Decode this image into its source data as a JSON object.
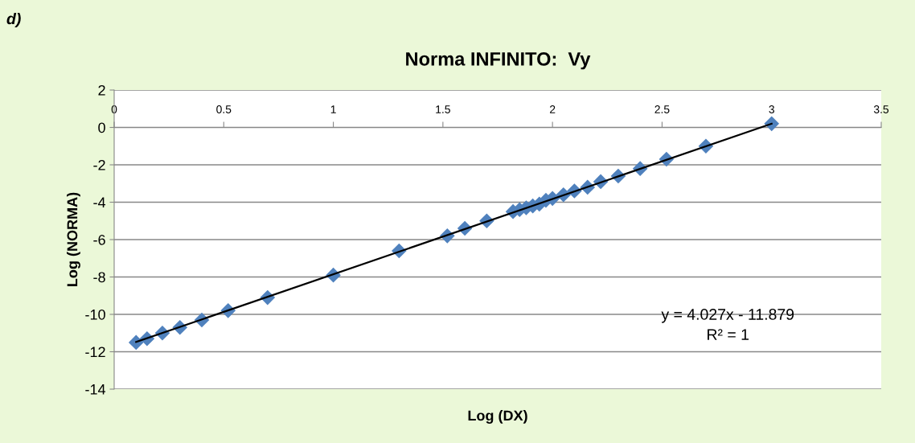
{
  "chart_data": {
    "type": "scatter",
    "title": "Norma INFINITO:  Vy",
    "xlabel": "Log (DX)",
    "ylabel": "Log (NORMA)",
    "annotations": [
      "d)",
      "y = 4.027x - 11.879\nR² = 1"
    ],
    "series": [
      {
        "color": "#4f81bd",
        "marker": "diamond",
        "x": [
          0.1,
          0.15,
          0.22,
          0.3,
          0.4,
          0.52,
          0.7,
          1.0,
          1.3,
          1.52,
          1.6,
          1.7,
          1.82,
          1.85,
          1.88,
          1.91,
          1.94,
          1.97,
          2.0,
          2.05,
          2.1,
          2.16,
          2.22,
          2.3,
          2.4,
          2.52,
          2.7,
          3.0
        ],
        "values": [
          -11.5,
          -11.3,
          -11.0,
          -10.7,
          -10.3,
          -9.8,
          -9.1,
          -7.9,
          -6.6,
          -5.8,
          -5.4,
          -5.0,
          -4.5,
          -4.4,
          -4.3,
          -4.2,
          -4.1,
          -3.9,
          -3.8,
          -3.6,
          -3.4,
          -3.2,
          -2.9,
          -2.6,
          -2.2,
          -1.7,
          -1.0,
          0.2
        ]
      },
      {
        "type": "line",
        "color": "#000000",
        "marker": "none",
        "x": [
          0.1,
          3.0
        ],
        "values": [
          -11.48,
          0.2
        ]
      }
    ],
    "xlim": [
      0,
      3.5
    ],
    "xticks": [
      0,
      0.5,
      1,
      1.5,
      2,
      2.5,
      3,
      3.5
    ],
    "ylim": [
      -14,
      2
    ],
    "yticks": [
      -14,
      -12,
      -10,
      -8,
      -6,
      -4,
      -2,
      0,
      2
    ],
    "grid": "y",
    "legend": false
  }
}
